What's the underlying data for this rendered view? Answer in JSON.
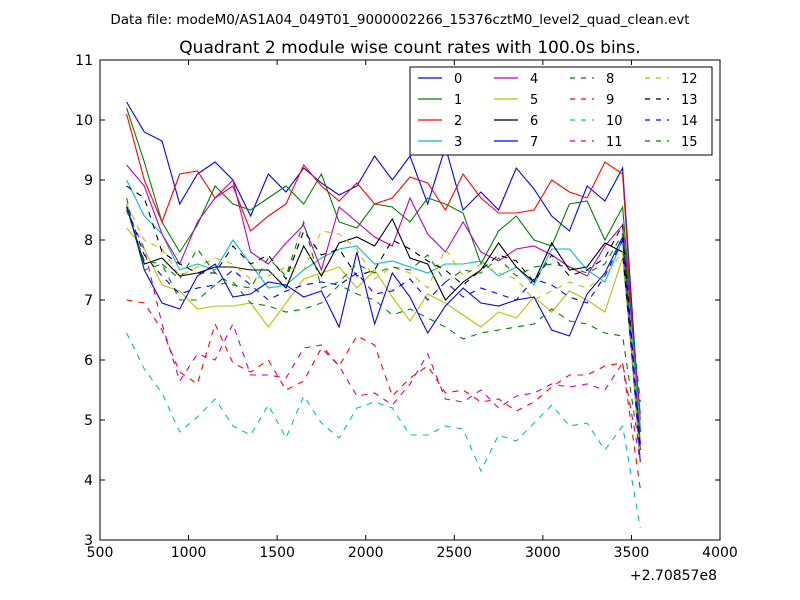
{
  "figure": {
    "suptitle": "Data file: modeM0/AS1A04_049T01_9000002266_15376cztM0_level2_quad_clean.evt"
  },
  "chart_data": {
    "type": "line",
    "title": "Quadrant 2 module wise count rates with 100.0s bins.",
    "xlabel": "",
    "ylabel": "",
    "x_offset_label": "+2.70857e8",
    "xlim": [
      500,
      4000
    ],
    "ylim": [
      3,
      11
    ],
    "x_ticks": [
      500,
      1000,
      1500,
      2000,
      2500,
      3000,
      3500,
      4000
    ],
    "x_tick_labels": [
      "500",
      "1000",
      "1500",
      "2000",
      "2500",
      "3000",
      "3500",
      "4000"
    ],
    "y_ticks": [
      3,
      4,
      5,
      6,
      7,
      8,
      9,
      10,
      11
    ],
    "y_tick_labels": [
      "3",
      "4",
      "5",
      "6",
      "7",
      "8",
      "9",
      "10",
      "11"
    ],
    "grid": false,
    "legend_position": "top-right",
    "legend_columns": 4,
    "x": [
      650,
      750,
      850,
      950,
      1050,
      1150,
      1250,
      1350,
      1450,
      1550,
      1650,
      1750,
      1850,
      1950,
      2050,
      2150,
      2250,
      2350,
      2450,
      2550,
      2650,
      2750,
      2850,
      2950,
      3050,
      3150,
      3250,
      3350,
      3450,
      3550
    ],
    "series": [
      {
        "name": "0",
        "color": "#0000ff",
        "dash": "solid",
        "values": [
          10.3,
          9.8,
          9.65,
          8.6,
          9.1,
          9.3,
          9.0,
          8.4,
          9.1,
          8.8,
          9.2,
          8.95,
          8.75,
          8.9,
          9.4,
          9.0,
          9.4,
          8.6,
          9.55,
          8.5,
          8.8,
          8.5,
          9.2,
          8.85,
          8.4,
          8.15,
          8.9,
          8.65,
          9.2,
          4.8
        ]
      },
      {
        "name": "1",
        "color": "#008000",
        "dash": "solid",
        "values": [
          10.2,
          9.3,
          8.3,
          7.8,
          8.25,
          8.9,
          8.6,
          8.5,
          8.7,
          8.9,
          8.6,
          9.1,
          8.3,
          8.2,
          8.6,
          8.55,
          8.3,
          8.7,
          8.6,
          8.45,
          7.6,
          8.15,
          8.4,
          8.0,
          7.9,
          8.6,
          8.65,
          8.0,
          8.55,
          5.0
        ]
      },
      {
        "name": "2",
        "color": "#ff0000",
        "dash": "solid",
        "values": [
          10.1,
          9.0,
          8.3,
          9.1,
          9.15,
          8.7,
          8.9,
          8.15,
          8.4,
          8.6,
          9.25,
          8.9,
          8.65,
          8.95,
          8.6,
          8.7,
          9.05,
          8.95,
          8.5,
          9.1,
          8.7,
          8.45,
          8.45,
          8.5,
          9.0,
          8.8,
          8.7,
          9.3,
          9.1,
          4.6
        ]
      },
      {
        "name": "3",
        "color": "#00bfbf",
        "dash": "solid",
        "values": [
          9.0,
          8.4,
          8.1,
          7.5,
          7.6,
          7.5,
          8.0,
          7.6,
          7.2,
          7.25,
          7.5,
          7.7,
          7.85,
          7.9,
          7.6,
          7.65,
          7.55,
          7.45,
          7.6,
          7.6,
          7.65,
          7.4,
          7.55,
          7.25,
          7.85,
          7.85,
          7.5,
          7.3,
          8.0,
          4.9
        ]
      },
      {
        "name": "4",
        "color": "#bf00bf",
        "dash": "solid",
        "values": [
          9.25,
          8.9,
          8.1,
          7.6,
          8.3,
          8.7,
          9.0,
          7.8,
          7.6,
          7.95,
          8.25,
          7.5,
          8.55,
          8.3,
          8.05,
          7.9,
          8.7,
          8.1,
          7.8,
          8.3,
          7.8,
          7.65,
          7.85,
          7.9,
          7.75,
          7.55,
          7.4,
          7.9,
          8.25,
          5.1
        ]
      },
      {
        "name": "5",
        "color": "#bfbf00",
        "dash": "solid",
        "values": [
          8.2,
          7.85,
          7.25,
          7.15,
          6.85,
          6.9,
          6.9,
          6.95,
          6.55,
          6.95,
          7.35,
          7.45,
          7.55,
          7.2,
          7.5,
          7.05,
          6.65,
          7.1,
          6.95,
          6.75,
          6.55,
          6.8,
          6.7,
          7.05,
          6.8,
          7.15,
          7.0,
          6.8,
          7.7,
          4.6
        ]
      },
      {
        "name": "6",
        "color": "#000000",
        "dash": "solid",
        "values": [
          8.55,
          7.6,
          7.7,
          7.4,
          7.45,
          7.55,
          7.55,
          7.5,
          7.5,
          7.2,
          7.9,
          7.4,
          7.95,
          8.05,
          7.9,
          8.35,
          7.7,
          7.6,
          7.0,
          7.3,
          7.5,
          7.95,
          7.55,
          7.3,
          7.95,
          7.5,
          7.55,
          7.95,
          7.8,
          4.5
        ]
      },
      {
        "name": "7",
        "color": "#0000ff",
        "dash": "solid",
        "values": [
          8.6,
          7.5,
          6.95,
          6.85,
          7.4,
          7.6,
          7.05,
          7.1,
          7.3,
          7.25,
          7.05,
          7.15,
          6.55,
          7.8,
          6.6,
          7.45,
          7.05,
          6.45,
          6.9,
          7.2,
          6.95,
          6.9,
          7.0,
          7.05,
          6.5,
          6.4,
          7.1,
          7.45,
          8.05,
          4.3
        ]
      },
      {
        "name": "8",
        "color": "#008000",
        "dash": "dashed",
        "values": [
          8.7,
          7.5,
          7.6,
          7.0,
          7.0,
          7.25,
          7.3,
          6.95,
          6.9,
          6.8,
          6.85,
          6.95,
          7.25,
          7.1,
          7.0,
          6.75,
          6.85,
          6.7,
          6.55,
          6.35,
          6.45,
          6.5,
          6.55,
          6.6,
          6.85,
          6.65,
          6.6,
          6.45,
          6.4,
          4.4
        ]
      },
      {
        "name": "9",
        "color": "#ff0000",
        "dash": "dashed",
        "values": [
          7.0,
          6.95,
          6.5,
          5.8,
          5.6,
          6.6,
          5.95,
          5.8,
          6.0,
          5.5,
          5.65,
          6.2,
          5.9,
          6.4,
          6.25,
          5.4,
          5.7,
          5.9,
          5.45,
          5.5,
          5.3,
          5.35,
          5.15,
          5.3,
          5.55,
          5.75,
          5.75,
          5.9,
          5.95,
          3.85
        ]
      },
      {
        "name": "10",
        "color": "#00bfbf",
        "dash": "dashed",
        "values": [
          6.45,
          5.85,
          5.45,
          4.8,
          5.05,
          5.35,
          4.9,
          4.75,
          5.25,
          4.7,
          5.4,
          4.95,
          4.7,
          5.2,
          5.3,
          5.2,
          4.75,
          4.75,
          4.9,
          4.85,
          4.15,
          4.75,
          4.65,
          4.95,
          5.25,
          4.9,
          4.95,
          4.5,
          4.9,
          3.2
        ]
      },
      {
        "name": "11",
        "color": "#bf00bf",
        "dash": "dashed",
        "values": [
          8.5,
          7.85,
          6.6,
          5.65,
          6.1,
          6.0,
          6.6,
          5.75,
          5.75,
          5.7,
          6.2,
          6.25,
          5.9,
          5.4,
          5.45,
          5.25,
          5.6,
          6.1,
          5.35,
          5.3,
          5.5,
          5.2,
          5.4,
          5.45,
          5.6,
          5.55,
          5.6,
          5.5,
          5.95,
          4.3
        ]
      },
      {
        "name": "12",
        "color": "#bfbf00",
        "dash": "dashed",
        "values": [
          8.6,
          8.0,
          7.85,
          7.4,
          7.55,
          7.7,
          7.6,
          7.35,
          7.4,
          7.55,
          7.5,
          8.15,
          8.1,
          7.85,
          7.35,
          7.55,
          7.45,
          7.2,
          7.85,
          7.4,
          7.6,
          7.45,
          7.35,
          7.0,
          7.15,
          7.3,
          7.2,
          7.4,
          7.8,
          4.4
        ]
      },
      {
        "name": "13",
        "color": "#000000",
        "dash": "dashed",
        "values": [
          8.9,
          8.7,
          7.8,
          7.6,
          7.45,
          7.45,
          7.9,
          7.6,
          7.75,
          7.35,
          8.15,
          7.75,
          7.85,
          7.4,
          7.5,
          8.0,
          7.85,
          7.65,
          7.5,
          7.25,
          7.5,
          7.75,
          7.65,
          7.3,
          7.75,
          7.4,
          7.5,
          7.7,
          8.25,
          4.5
        ]
      },
      {
        "name": "14",
        "color": "#0000ff",
        "dash": "dashed",
        "values": [
          8.55,
          7.75,
          7.4,
          7.1,
          7.2,
          7.25,
          7.5,
          7.25,
          7.0,
          7.15,
          7.25,
          7.3,
          7.25,
          7.45,
          7.1,
          7.15,
          7.35,
          7.0,
          7.3,
          7.05,
          7.2,
          7.1,
          7.0,
          7.35,
          7.25,
          7.05,
          6.95,
          7.4,
          8.0,
          4.6
        ]
      },
      {
        "name": "15",
        "color": "#008000",
        "dash": "dashed",
        "values": [
          8.5,
          7.65,
          7.6,
          7.35,
          7.85,
          7.45,
          7.25,
          7.2,
          7.7,
          7.4,
          8.3,
          7.2,
          7.3,
          7.6,
          7.45,
          7.55,
          7.5,
          7.75,
          7.3,
          7.5,
          7.45,
          7.7,
          7.4,
          7.55,
          7.6,
          7.55,
          7.45,
          7.6,
          8.1,
          5.3
        ]
      }
    ]
  }
}
